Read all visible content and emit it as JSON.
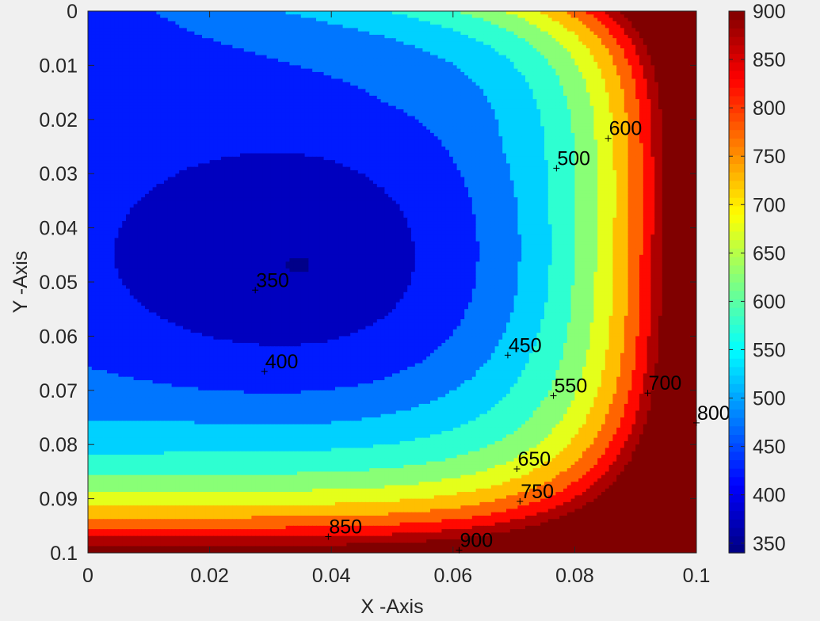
{
  "chart_data": {
    "type": "heatmap",
    "subtype": "filled-contour",
    "title": "",
    "xlabel": "X -Axis",
    "ylabel": "Y -Axis",
    "xlim": [
      0,
      0.1
    ],
    "ylim": [
      0,
      0.1
    ],
    "y_direction": "reverse",
    "x_ticks": [
      "0",
      "0.02",
      "0.04",
      "0.06",
      "0.08",
      "0.1"
    ],
    "y_ticks": [
      "0",
      "0.01",
      "0.02",
      "0.03",
      "0.04",
      "0.05",
      "0.06",
      "0.07",
      "0.08",
      "0.09",
      "0.1"
    ],
    "colormap": "jet",
    "color_limits": [
      340,
      900
    ],
    "colorbar_ticks": [
      "350",
      "400",
      "450",
      "500",
      "550",
      "600",
      "650",
      "700",
      "750",
      "800",
      "850",
      "900"
    ],
    "contour_levels": [
      350,
      400,
      450,
      500,
      550,
      600,
      650,
      700,
      750,
      800,
      850,
      900
    ],
    "contour_labels": [
      {
        "text": "350",
        "x": 0.0275,
        "y": 0.0515
      },
      {
        "text": "400",
        "x": 0.029,
        "y": 0.0665
      },
      {
        "text": "450",
        "x": 0.069,
        "y": 0.0635
      },
      {
        "text": "500",
        "x": 0.077,
        "y": 0.029
      },
      {
        "text": "550",
        "x": 0.0765,
        "y": 0.071
      },
      {
        "text": "600",
        "x": 0.0855,
        "y": 0.0235
      },
      {
        "text": "650",
        "x": 0.0705,
        "y": 0.0845
      },
      {
        "text": "700",
        "x": 0.092,
        "y": 0.0705
      },
      {
        "text": "750",
        "x": 0.071,
        "y": 0.0905
      },
      {
        "text": "800",
        "x": 0.1,
        "y": 0.076
      },
      {
        "text": "850",
        "x": 0.0395,
        "y": 0.097
      },
      {
        "text": "900",
        "x": 0.061,
        "y": 0.0995
      }
    ],
    "field": {
      "description": "Temperature-like field: hot boundary at x=0.1 and y=0.1, cold core near (0.04, 0.047)",
      "min": 340,
      "max": 900
    }
  }
}
